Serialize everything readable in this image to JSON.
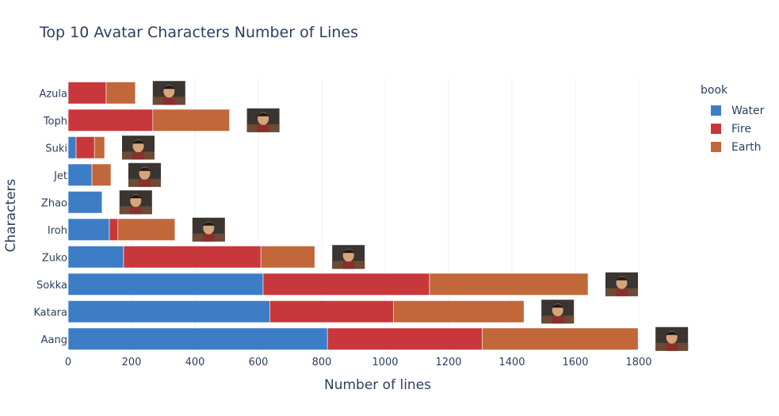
{
  "chart_data": {
    "type": "bar",
    "orientation": "horizontal",
    "stacked": true,
    "title": "Top 10 Avatar Characters Number of Lines",
    "xlabel": "Number of lines",
    "ylabel": "Characters",
    "xlim": [
      0,
      1960
    ],
    "xticks": [
      0,
      200,
      400,
      600,
      800,
      1000,
      1200,
      1400,
      1600,
      1800
    ],
    "legend_title": "book",
    "legend_position": "right",
    "grid": true,
    "categories": [
      "Aang",
      "Katara",
      "Sokka",
      "Zuko",
      "Iroh",
      "Zhao",
      "Jet",
      "Suki",
      "Toph",
      "Azula"
    ],
    "series": [
      {
        "name": "Water",
        "color": "#3d7dc6",
        "values": [
          818,
          636,
          615,
          175,
          130,
          107,
          75,
          25,
          0,
          0
        ]
      },
      {
        "name": "Fire",
        "color": "#c8373c",
        "values": [
          488,
          390,
          525,
          433,
          27,
          0,
          0,
          58,
          267,
          120
        ]
      },
      {
        "name": "Earth",
        "color": "#c1673a",
        "values": [
          492,
          412,
          500,
          170,
          180,
          0,
          60,
          32,
          242,
          92
        ]
      }
    ],
    "thumbnail_icons": [
      "aang-portrait-icon",
      "katara-portrait-icon",
      "sokka-portrait-icon",
      "zuko-portrait-icon",
      "iroh-portrait-icon",
      "zhao-portrait-icon",
      "jet-portrait-icon",
      "suki-portrait-icon",
      "toph-portrait-icon",
      "azula-portrait-icon"
    ]
  }
}
